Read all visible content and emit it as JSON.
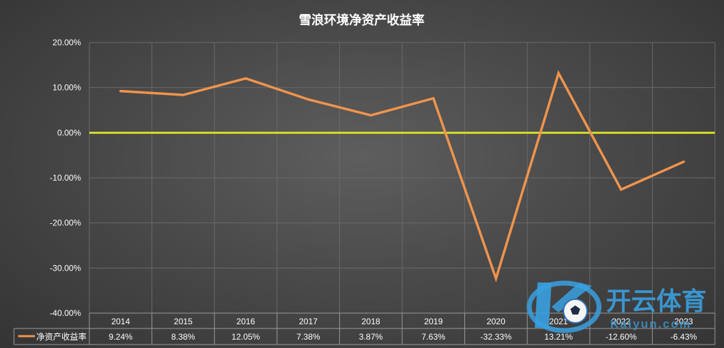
{
  "chart_data": {
    "type": "line",
    "title": "雪浪环境净资产收益率",
    "categories": [
      "2014",
      "2015",
      "2016",
      "2017",
      "2018",
      "2019",
      "2020",
      "2021",
      "2022",
      "2023"
    ],
    "series": [
      {
        "name": "净资产收益率",
        "values": [
          9.24,
          8.38,
          12.05,
          7.38,
          3.87,
          7.63,
          -32.33,
          13.21,
          -12.6,
          -6.43
        ],
        "labels": [
          "9.24%",
          "8.38%",
          "12.05%",
          "7.38%",
          "3.87%",
          "7.63%",
          "-32.33%",
          "13.21%",
          "-12.60%",
          "-6.43%"
        ],
        "color": "#f0944d"
      }
    ],
    "ylim": [
      -40,
      20
    ],
    "yticks": [
      20,
      10,
      0,
      -10,
      -20,
      -30,
      -40
    ],
    "ytick_labels": [
      "20.00%",
      "10.00%",
      "0.00%",
      "-10.00%",
      "-20.00%",
      "-30.00%",
      "-40.00%"
    ],
    "zero_line_color": "#d6dc2a",
    "grid": true,
    "legend": "data-table-below",
    "data_table": true
  },
  "watermark": {
    "text_main": "开云体育",
    "text_sub": "Kaiyun.com",
    "color": "#3aa0e0"
  }
}
